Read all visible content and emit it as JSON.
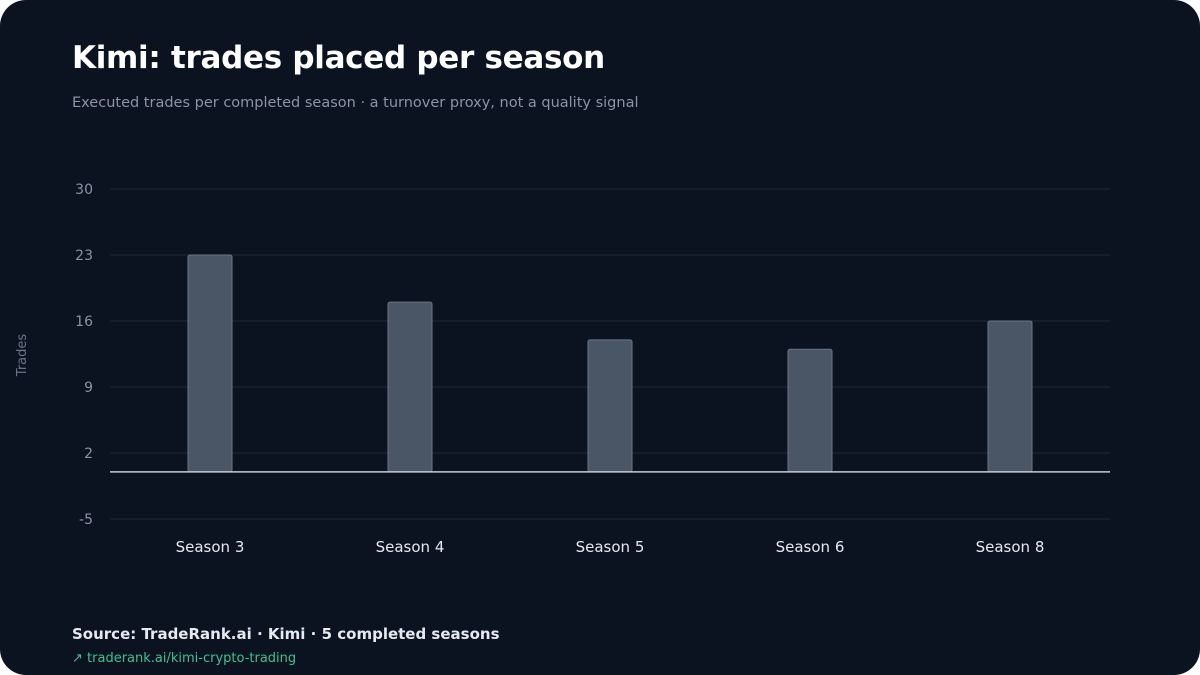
{
  "header": {
    "title": "Kimi: trades placed per season",
    "subtitle": "Executed trades per completed season · a turnover proxy, not a quality signal"
  },
  "footer": {
    "source": "Source: TradeRank.ai · Kimi · 5 completed seasons",
    "link_arrow": "↗",
    "link_text": "traderank.ai/kimi-crypto-trading"
  },
  "colors": {
    "background": "#0b1320",
    "bar_fill": "#4a5565",
    "bar_stroke": "#6b7686",
    "gridline": "#1f2a38",
    "baseline": "#c4cad4",
    "link": "#3ec28f"
  },
  "chart_data": {
    "type": "bar",
    "categories": [
      "Season 3",
      "Season 4",
      "Season 5",
      "Season 6",
      "Season 8"
    ],
    "values": [
      23,
      18,
      14,
      13,
      16
    ],
    "ylabel": "Trades",
    "xlabel": "",
    "ylim": [
      -5,
      30
    ],
    "yticks": [
      30,
      23,
      16,
      9,
      2,
      -5
    ],
    "grid": true,
    "legend": "none"
  }
}
